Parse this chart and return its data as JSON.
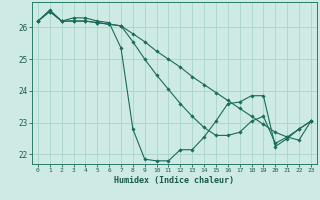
{
  "title": "",
  "xlabel": "Humidex (Indice chaleur)",
  "ylabel": "",
  "background_color": "#ceeae4",
  "grid_color": "#a8d4cc",
  "line_color": "#1a6b5a",
  "marker_color": "#1a6b5a",
  "xlim": [
    -0.5,
    23.5
  ],
  "ylim": [
    21.7,
    26.8
  ],
  "yticks": [
    22,
    23,
    24,
    25,
    26
  ],
  "xticks": [
    0,
    1,
    2,
    3,
    4,
    5,
    6,
    7,
    8,
    9,
    10,
    11,
    12,
    13,
    14,
    15,
    16,
    17,
    18,
    19,
    20,
    21,
    22,
    23
  ],
  "xtick_labels": [
    "0",
    "1",
    "2",
    "3",
    "4",
    "5",
    "6",
    "7",
    "8",
    "9",
    "10",
    "11",
    "12",
    "13",
    "14",
    "15",
    "16",
    "17",
    "18",
    "19",
    "20",
    "21",
    "22",
    "23"
  ],
  "series": [
    {
      "x": [
        0,
        1,
        2,
        3,
        4,
        5,
        6,
        7,
        8,
        9,
        10,
        11,
        12,
        13,
        14,
        15,
        16,
        17,
        18,
        19,
        20,
        21,
        22,
        23
      ],
      "y": [
        26.2,
        26.5,
        26.2,
        26.3,
        26.3,
        26.2,
        26.15,
        25.35,
        22.8,
        21.85,
        21.8,
        21.8,
        22.15,
        22.15,
        22.55,
        23.05,
        23.6,
        23.65,
        23.85,
        23.85,
        22.25,
        22.5,
        22.8,
        23.05
      ]
    },
    {
      "x": [
        0,
        1,
        2,
        3,
        4,
        5,
        6,
        7,
        8,
        9,
        10,
        11,
        12,
        13,
        14,
        15,
        16,
        17,
        18,
        19,
        20,
        21,
        22,
        23
      ],
      "y": [
        26.2,
        26.55,
        26.2,
        26.2,
        26.2,
        26.15,
        26.1,
        26.05,
        25.8,
        25.55,
        25.25,
        25.0,
        24.75,
        24.45,
        24.2,
        23.95,
        23.7,
        23.45,
        23.2,
        22.95,
        22.7,
        22.55,
        22.45,
        23.05
      ]
    },
    {
      "x": [
        0,
        1,
        2,
        3,
        4,
        5,
        6,
        7,
        8,
        9,
        10,
        11,
        12,
        13,
        14,
        15,
        16,
        17,
        18,
        19,
        20,
        21,
        22,
        23
      ],
      "y": [
        26.2,
        26.5,
        26.2,
        26.2,
        26.2,
        26.15,
        26.1,
        26.05,
        25.55,
        25.0,
        24.5,
        24.05,
        23.6,
        23.2,
        22.85,
        22.6,
        22.6,
        22.7,
        23.05,
        23.2,
        22.35,
        22.55,
        22.8,
        23.05
      ]
    }
  ]
}
